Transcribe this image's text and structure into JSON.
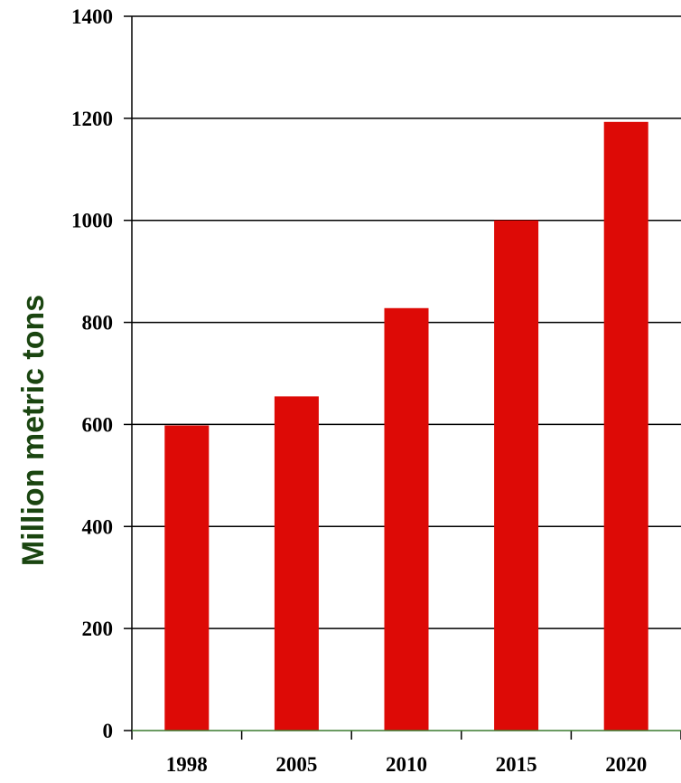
{
  "chart_data": {
    "type": "bar",
    "title": "",
    "xlabel": "",
    "ylabel": "Million metric tons",
    "categories": [
      "1998",
      "2005",
      "2010",
      "2015",
      "2020"
    ],
    "values": [
      598,
      655,
      828,
      1000,
      1193
    ],
    "ylim": [
      0,
      1400
    ],
    "yticks": [
      "0",
      "200",
      "400",
      "600",
      "800",
      "1000",
      "1200",
      "1400"
    ],
    "grid": true,
    "legend": "none"
  },
  "colors": {
    "bar": "#dd0a06",
    "ylabel": "#1a4510",
    "axis": "#000000",
    "grid": "#000000",
    "baseline": "#3a7a2e"
  }
}
